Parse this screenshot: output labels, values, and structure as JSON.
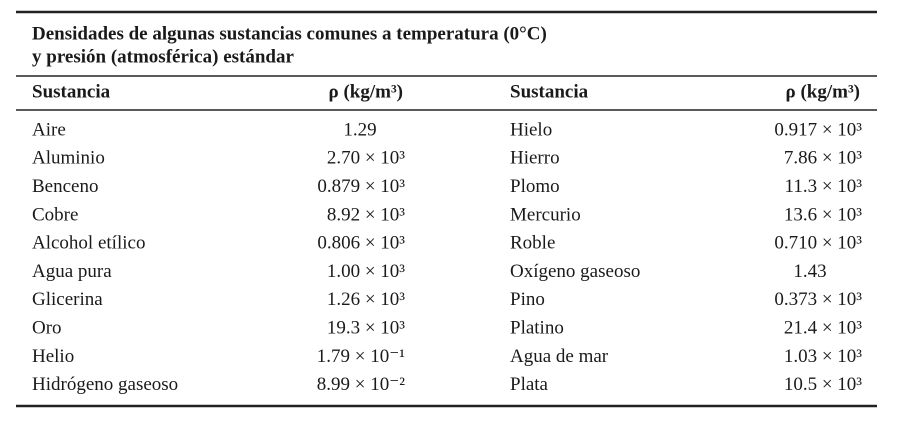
{
  "table": {
    "title": [
      "Densidades de algunas sustancias comunes a temperatura (0°C)",
      "y presión (atmosférica) estándar"
    ],
    "header": [
      "Sustancia",
      "ρ (kg/m³)",
      "Sustancia",
      "ρ (kg/m³)"
    ],
    "rows": [
      [
        "Aire",
        "1.29",
        "Hielo",
        "0.917 × 10³"
      ],
      [
        "Aluminio",
        "2.70 × 10³",
        "Hierro",
        "7.86 × 10³"
      ],
      [
        "Benceno",
        "0.879 × 10³",
        "Plomo",
        "11.3 × 10³"
      ],
      [
        "Cobre",
        "8.92 × 10³",
        "Mercurio",
        "13.6 × 10³"
      ],
      [
        "Alcohol etílico",
        "0.806 × 10³",
        "Roble",
        "0.710 × 10³"
      ],
      [
        "Agua pura",
        "1.00 × 10³",
        "Oxígeno gaseoso",
        "1.43"
      ],
      [
        "Glicerina",
        "1.26 × 10³",
        "Pino",
        "0.373 × 10³"
      ],
      [
        "Oro",
        "19.3 × 10³",
        "Platino",
        "21.4 × 10³"
      ],
      [
        "Helio",
        "1.79 × 10⁻¹",
        "Agua de mar",
        "1.03 × 10³"
      ],
      [
        "Hidrógeno gaseoso",
        "8.99 × 10⁻²",
        "Plata",
        "10.5 × 10³"
      ]
    ]
  }
}
